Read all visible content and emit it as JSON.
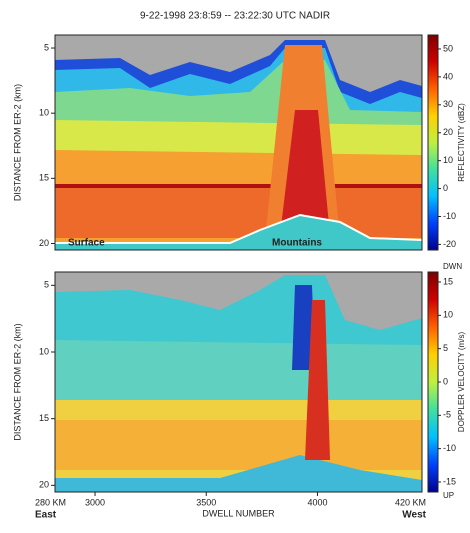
{
  "title": "9-22-1998  23:8:59 -- 23:22:30 UTC  NADIR",
  "chart_data": [
    {
      "type": "heatmap",
      "ylabel": "DISTANCE FROM ER-2 (km)",
      "ylim": [
        20.5,
        4
      ],
      "yticks": [
        5,
        10,
        15,
        20
      ],
      "colorbar_label": "REFLECTIVITY (dBZ)",
      "colorbar_lim": [
        -22,
        55
      ],
      "colorbar_ticks": [
        50,
        40,
        30,
        20,
        10,
        0,
        -10,
        -20
      ],
      "colorbar_colors": [
        "#00008f",
        "#0040ff",
        "#00c0ff",
        "#40e0a0",
        "#c0f040",
        "#ffd000",
        "#ff6000",
        "#d00000",
        "#800000"
      ],
      "annotations": [
        "Surface",
        "Mountains"
      ]
    },
    {
      "type": "heatmap",
      "ylabel": "DISTANCE FROM ER-2 (km)",
      "ylim": [
        20.5,
        4
      ],
      "yticks": [
        5,
        10,
        15,
        20
      ],
      "xlabel": "DWELL NUMBER",
      "xlim": [
        2820,
        4470
      ],
      "xticks": [
        3000,
        3500,
        4000
      ],
      "x_start_label": "280 KM",
      "x_start_direction": "East",
      "x_end_label": "420 KM",
      "x_end_direction": "West",
      "colorbar_label": "DOPPLER VELOCITY (m/s)",
      "colorbar_lim": [
        -16.5,
        16.5
      ],
      "colorbar_ticks": [
        15,
        10,
        5,
        0,
        -5,
        -10,
        -15
      ],
      "colorbar_top_label": "DWN",
      "colorbar_bottom_label": "UP",
      "colorbar_colors": [
        "#00008f",
        "#0040ff",
        "#00c0ff",
        "#40e0a0",
        "#c0f040",
        "#ffd000",
        "#ff6000",
        "#d00000",
        "#800000"
      ]
    }
  ]
}
